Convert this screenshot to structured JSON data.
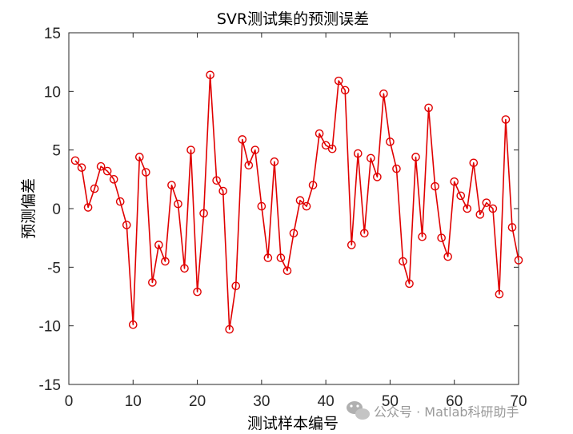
{
  "chart_data": {
    "type": "line",
    "title": "SVR测试集的预测误差",
    "xlabel": "测试样本编号",
    "ylabel": "预测偏差",
    "xlim": [
      0,
      70
    ],
    "ylim": [
      -15,
      15
    ],
    "xticks": [
      0,
      10,
      20,
      30,
      40,
      50,
      60,
      70
    ],
    "yticks": [
      -15,
      -10,
      -5,
      0,
      5,
      10,
      15
    ],
    "grid": false,
    "line_color": "#e00000",
    "marker": "circle",
    "series": [
      {
        "x": [
          1,
          2,
          3,
          4,
          5,
          6,
          7,
          8,
          9,
          10,
          11,
          12,
          13,
          14,
          15,
          16,
          17,
          18,
          19,
          20,
          21,
          22,
          23,
          24,
          25,
          26,
          27,
          28,
          29,
          30,
          31,
          32,
          33,
          34,
          35,
          36,
          37,
          38,
          39,
          40,
          41,
          42,
          43,
          44,
          45,
          46,
          47,
          48,
          49,
          50,
          51,
          52,
          53,
          54,
          55,
          56,
          57,
          58,
          59,
          60,
          61,
          62,
          63,
          64,
          65,
          66,
          67,
          68,
          69,
          70
        ],
        "values": [
          4.1,
          3.5,
          0.1,
          1.7,
          3.6,
          3.2,
          2.5,
          0.6,
          -1.4,
          -9.9,
          4.4,
          3.1,
          -6.3,
          -3.1,
          -4.5,
          2.0,
          0.4,
          -5.1,
          5.0,
          -7.1,
          -0.4,
          11.4,
          2.4,
          1.5,
          -10.3,
          -6.6,
          5.9,
          3.7,
          5.0,
          0.2,
          -4.2,
          4.0,
          -4.2,
          -5.3,
          -2.1,
          0.7,
          0.2,
          2.0,
          6.4,
          5.4,
          5.1,
          10.9,
          10.1,
          -3.1,
          4.7,
          -2.1,
          4.3,
          2.7,
          9.8,
          5.7,
          3.4,
          -4.5,
          -6.4,
          4.4,
          -2.4,
          8.6,
          1.9,
          -2.5,
          -4.1,
          2.3,
          1.1,
          0.0,
          3.9,
          -0.5,
          0.5,
          0.0,
          -7.3,
          7.6,
          -1.6,
          -4.4
        ]
      }
    ]
  },
  "watermark": {
    "icon": "wechat-icon",
    "text": "公众号 · Matlab科研助手"
  }
}
